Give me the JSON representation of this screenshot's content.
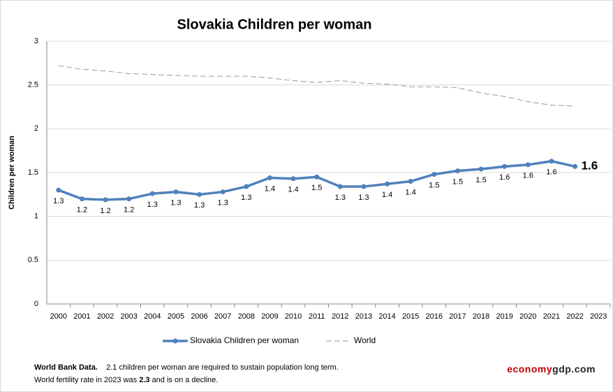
{
  "chart_data": {
    "type": "line",
    "title": "Slovakia Children per woman",
    "y_label": "Children per woman",
    "categories": [
      "2000",
      "2001",
      "2002",
      "2003",
      "2004",
      "2005",
      "2006",
      "2007",
      "2008",
      "2009",
      "2010",
      "2011",
      "2012",
      "2013",
      "2014",
      "2015",
      "2016",
      "2017",
      "2018",
      "2019",
      "2020",
      "2021",
      "2022",
      "2023"
    ],
    "series": [
      {
        "name": "Slovakia Children per woman",
        "color": "#4f81bd",
        "values": [
          1.3,
          1.2,
          1.19,
          1.2,
          1.26,
          1.28,
          1.25,
          1.28,
          1.34,
          1.44,
          1.43,
          1.45,
          1.34,
          1.34,
          1.37,
          1.4,
          1.48,
          1.52,
          1.54,
          1.57,
          1.59,
          1.63,
          1.57,
          null
        ],
        "value_labels": [
          "1.3",
          "1.2",
          "1.2",
          "1.2",
          "1.3",
          "1.3",
          "1.3",
          "1.3",
          "1.3",
          "1.4",
          "1.4",
          "1.5",
          "1.3",
          "1.3",
          "1.4",
          "1.4",
          "1.5",
          "1.5",
          "1.5",
          "1.6",
          "1.6",
          "1.6",
          "1.6",
          null
        ]
      },
      {
        "name": "World",
        "color": "#999999",
        "dashed": true,
        "values": [
          2.72,
          2.68,
          2.66,
          2.63,
          2.62,
          2.61,
          2.6,
          2.6,
          2.6,
          2.58,
          2.55,
          2.53,
          2.55,
          2.52,
          2.51,
          2.48,
          2.48,
          2.47,
          2.41,
          2.37,
          2.31,
          2.27,
          2.26,
          null
        ]
      }
    ],
    "ylim": [
      0,
      3
    ],
    "yticks": [
      0,
      0.5,
      1,
      1.5,
      2,
      2.5,
      3
    ],
    "grid": true,
    "legend": "bottom"
  },
  "footer": {
    "source": "World Bank Data.",
    "note": "2.1 children per woman are required to sustain population long term.",
    "line2_start": "World fertility rate in 2023 was",
    "line2_value": "2.3",
    "line2_end": "and is on a decline.",
    "brand_red": "economy",
    "brand_dark": "gdp.com"
  }
}
